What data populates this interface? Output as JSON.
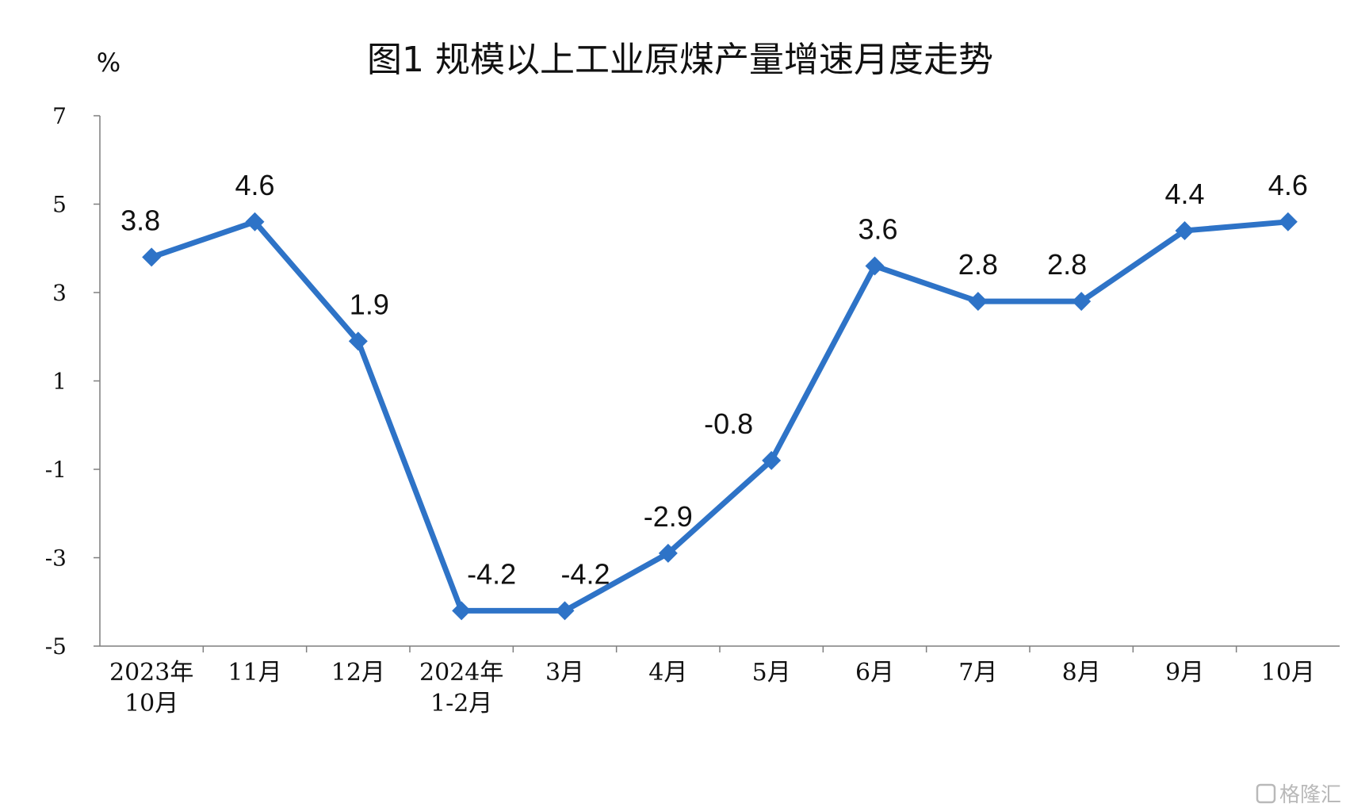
{
  "watermark": "格隆汇",
  "chart_data": {
    "type": "line",
    "title": "图1  规模以上工业原煤产量增速月度走势",
    "ylabel": "%",
    "xlabel": "",
    "ylim": [
      -5,
      7
    ],
    "yticks": [
      7,
      5,
      3,
      1,
      -1,
      -3,
      -5
    ],
    "ytick_labels": [
      "7",
      "5",
      "3",
      "1",
      "-1",
      "-3",
      "-5"
    ],
    "categories": [
      [
        "2023年",
        "10月"
      ],
      [
        "11月"
      ],
      [
        "12月"
      ],
      [
        "2024年",
        "1-2月"
      ],
      [
        "3月"
      ],
      [
        "4月"
      ],
      [
        "5月"
      ],
      [
        "6月"
      ],
      [
        "7月"
      ],
      [
        "8月"
      ],
      [
        "9月"
      ],
      [
        "10月"
      ]
    ],
    "series": [
      {
        "values": [
          3.8,
          4.6,
          1.9,
          -4.2,
          -4.2,
          -2.9,
          -0.8,
          3.6,
          2.8,
          2.8,
          4.4,
          4.6
        ],
        "data_labels": [
          "3.8",
          "4.6",
          "1.9",
          "-4.2",
          "-4.2",
          "-2.9",
          "-0.8",
          "3.6",
          "2.8",
          "2.8",
          "4.4",
          "4.6"
        ],
        "color": "#2e73c7",
        "marker": "diamond"
      }
    ],
    "grid": false,
    "legend": "none"
  }
}
